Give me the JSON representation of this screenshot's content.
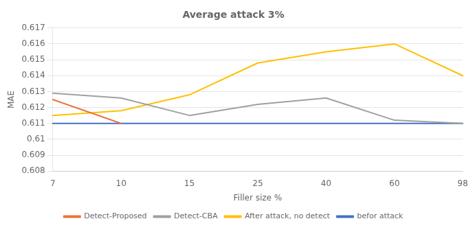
{
  "chart_data": {
    "type": "line",
    "title": "Average attack 3%",
    "x_label": "Filler size %",
    "y_label": "MAE",
    "categories": [
      "7",
      "10",
      "15",
      "25",
      "40",
      "60",
      "98"
    ],
    "series": [
      {
        "name": "Detect-Proposed",
        "color": "#E8763A",
        "values": [
          0.6125,
          0.611,
          null,
          null,
          null,
          null,
          null
        ]
      },
      {
        "name": "Detect-CBA",
        "color": "#A0A0A0",
        "values": [
          0.6129,
          0.6126,
          0.6115,
          0.6122,
          0.6126,
          0.6112,
          0.611
        ]
      },
      {
        "name": "After attack, no detect",
        "color": "#FFC000",
        "values": [
          0.6115,
          0.6118,
          0.6128,
          0.6148,
          0.6155,
          0.616,
          0.614
        ]
      },
      {
        "name": "befor attack",
        "color": "#4472C4",
        "values": [
          0.611,
          0.611,
          0.611,
          0.611,
          0.611,
          0.611,
          0.611
        ]
      }
    ],
    "ylim": [
      0.608,
      0.617
    ],
    "yticks": [
      0.608,
      0.609,
      0.61,
      0.611,
      0.612,
      0.613,
      0.614,
      0.615,
      0.616,
      0.617
    ],
    "grid": true,
    "legend": "bottom"
  }
}
